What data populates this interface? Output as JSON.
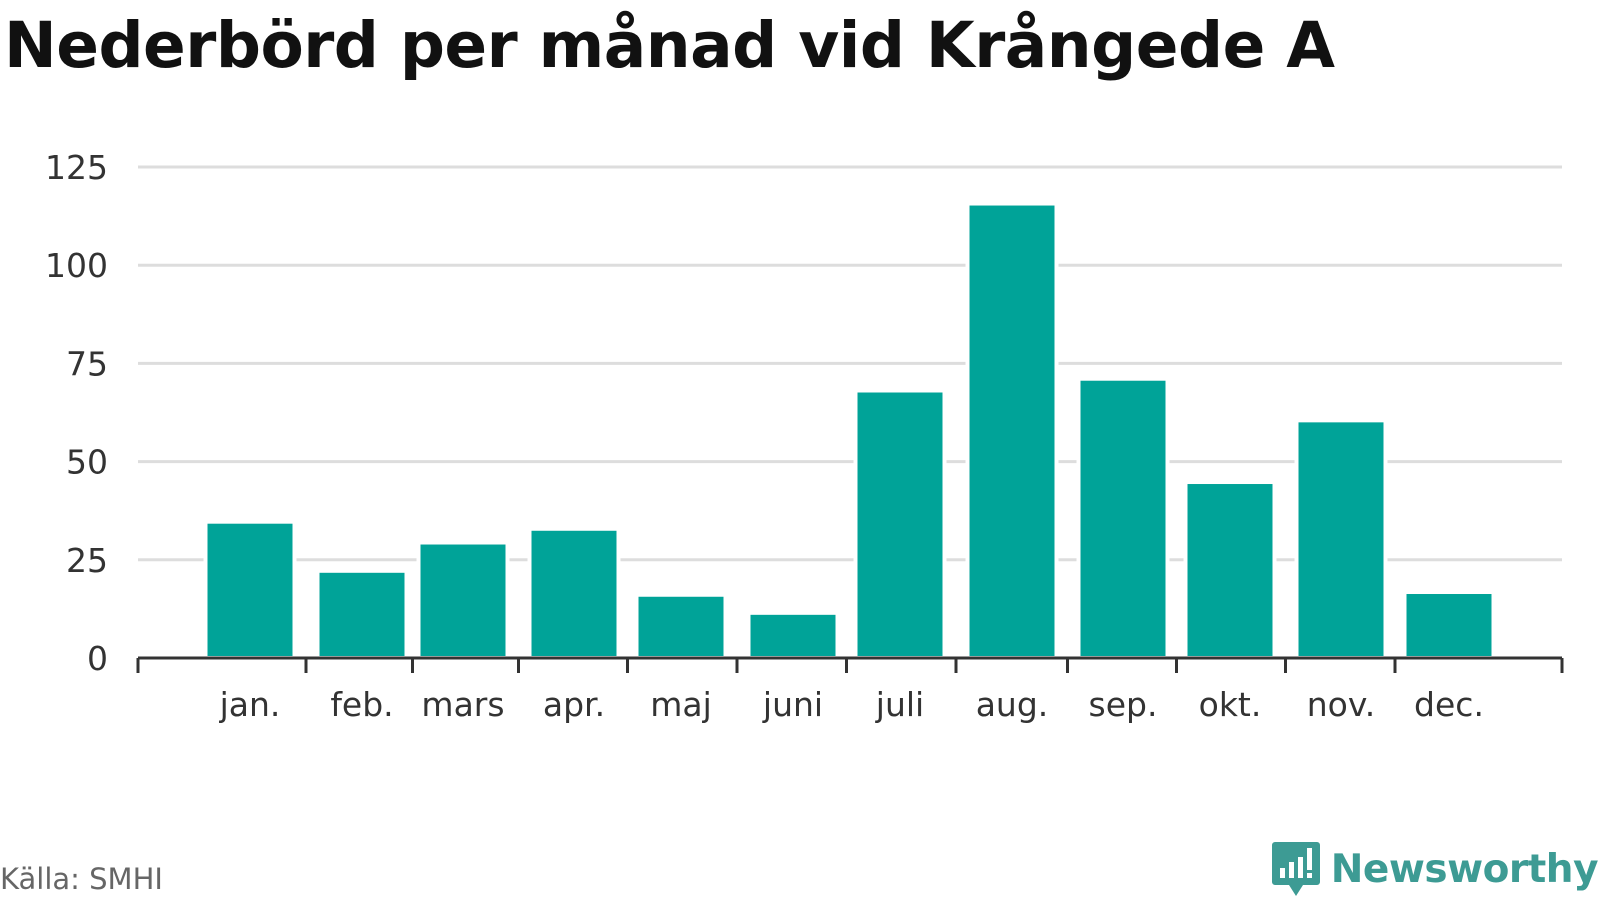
{
  "title": "Nederbörd per månad vid Krångede A",
  "source": "Källa: SMHI",
  "brand": {
    "name": "Newsworthy",
    "icon": "newsworthy-logo-icon",
    "color": "#3d9b94"
  },
  "colors": {
    "bar": "#00a398",
    "grid": "#dddddd",
    "axis": "#333333"
  },
  "chart_data": {
    "type": "bar",
    "categories": [
      "jan.",
      "feb.",
      "mars",
      "apr.",
      "maj",
      "juni",
      "juli",
      "aug.",
      "sep.",
      "okt.",
      "nov.",
      "dec."
    ],
    "values": [
      34.7,
      22.2,
      29.4,
      32.9,
      16.1,
      11.5,
      68.1,
      115.7,
      71.1,
      44.8,
      60.5,
      16.8
    ],
    "title": "Nederbörd per månad vid Krångede A",
    "xlabel": "",
    "ylabel": "",
    "ylim": [
      0,
      125
    ],
    "yticks": [
      0,
      25,
      50,
      75,
      100,
      125
    ],
    "grid": true,
    "legend": "none"
  }
}
